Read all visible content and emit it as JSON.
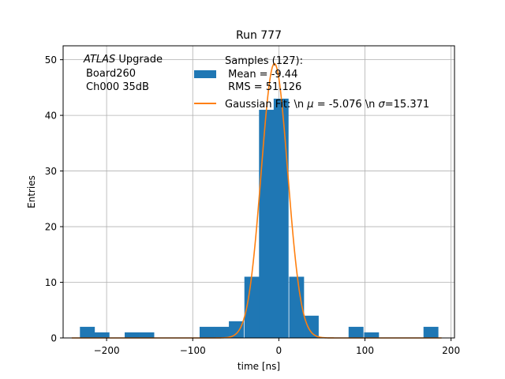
{
  "chart_data": {
    "type": "bar",
    "title": "Run 777",
    "xlabel": "time [ns]",
    "ylabel": "Entries",
    "xlim": [
      -250.5,
      204
    ],
    "ylim": [
      0,
      52.5
    ],
    "xticks": [
      -200,
      -100,
      0,
      100,
      200
    ],
    "xtick_labels": [
      "−200",
      "−100",
      "0",
      "100",
      "200"
    ],
    "yticks": [
      0,
      10,
      20,
      30,
      40,
      50
    ],
    "ytick_labels": [
      "0",
      "10",
      "20",
      "30",
      "40",
      "50"
    ],
    "grid": true,
    "annotation": {
      "italic": "ATLAS",
      "line1_rest": " Upgrade",
      "line2": "Board260",
      "line3": "Ch000 35dB"
    },
    "legend_position": "top-right",
    "histogram": {
      "name": "Samples (127):",
      "name_lines": [
        "Samples (127):",
        " Mean = -9.44",
        " RMS = 51.126"
      ],
      "color": "#1f77b4",
      "bin_width": 17.3,
      "bins": [
        {
          "left": -231,
          "count": 2
        },
        {
          "left": -214,
          "count": 1
        },
        {
          "left": -179,
          "count": 1
        },
        {
          "left": -162,
          "count": 1
        },
        {
          "left": -92,
          "count": 2
        },
        {
          "left": -75,
          "count": 2
        },
        {
          "left": -58,
          "count": 3
        },
        {
          "left": -40,
          "count": 11
        },
        {
          "left": -23,
          "count": 41
        },
        {
          "left": -6,
          "count": 43
        },
        {
          "left": 12,
          "count": 11
        },
        {
          "left": 29,
          "count": 4
        },
        {
          "left": 81,
          "count": 2
        },
        {
          "left": 99,
          "count": 1
        },
        {
          "left": 168,
          "count": 2
        }
      ]
    },
    "fit": {
      "name": "Gaussian Fit: \\n $\\mu$ = -5.076 \\n $\\sigma$=15.371",
      "legend_parts": [
        "Gaussian Fit: \\n ",
        "μ",
        " = -5.076 \\n ",
        "σ",
        "=15.371"
      ],
      "color": "#ff7f0e",
      "mu": -5.076,
      "sigma": 15.371,
      "peak": 49.3
    }
  }
}
